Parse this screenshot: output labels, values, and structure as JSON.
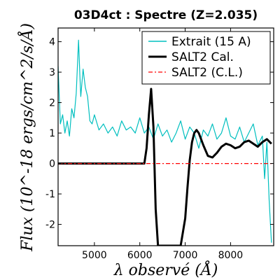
{
  "chart_data": {
    "type": "line",
    "title": "03D4ct : Spectre (Z=2.035)",
    "xlabel": "λ observé (Å)",
    "ylabel": "Flux (10^-18 ergs/cm^2/s/Å)",
    "xlim": [
      4200,
      8950
    ],
    "ylim": [
      -2.7,
      4.45
    ],
    "xticks": [
      5000,
      6000,
      7000,
      8000
    ],
    "xtick_labels": [
      "5000",
      "6000",
      "7000",
      "8000"
    ],
    "yticks": [
      4,
      3,
      2,
      1,
      0,
      -1,
      -2
    ],
    "ytick_labels": [
      "4",
      "3",
      "2",
      "1",
      "0",
      "-1",
      "-2"
    ],
    "grid": false,
    "legend_position": "top-right",
    "colors": {
      "extrait": "#00bfbf",
      "salt2_cal": "#000000",
      "salt2_cl": "#ff0000"
    },
    "series": [
      {
        "name": "Extrait (15 A)",
        "style": "solid",
        "x": [
          4200,
          4250,
          4300,
          4350,
          4400,
          4450,
          4500,
          4550,
          4600,
          4650,
          4680,
          4700,
          4750,
          4800,
          4850,
          4900,
          4950,
          5000,
          5100,
          5200,
          5300,
          5400,
          5500,
          5600,
          5700,
          5800,
          5900,
          6000,
          6100,
          6200,
          6300,
          6400,
          6500,
          6600,
          6700,
          6800,
          6900,
          7000,
          7100,
          7200,
          7300,
          7400,
          7500,
          7600,
          7700,
          7800,
          7900,
          8000,
          8100,
          8200,
          8300,
          8400,
          8500,
          8600,
          8700,
          8750,
          8800,
          8850,
          8900
        ],
        "y": [
          3.2,
          1.3,
          1.6,
          1.0,
          1.4,
          0.9,
          1.8,
          1.5,
          2.3,
          4.05,
          2.9,
          2.2,
          3.1,
          2.5,
          2.2,
          1.4,
          1.3,
          1.6,
          1.1,
          1.3,
          1.0,
          1.2,
          0.9,
          1.4,
          1.1,
          1.2,
          1.0,
          1.5,
          1.0,
          1.2,
          0.8,
          1.3,
          0.9,
          1.1,
          0.7,
          1.0,
          1.4,
          0.8,
          1.2,
          1.0,
          0.5,
          1.1,
          0.9,
          1.3,
          0.8,
          1.0,
          1.5,
          0.9,
          0.8,
          1.2,
          0.7,
          1.0,
          1.3,
          0.6,
          0.9,
          -0.5,
          0.7,
          -1.2,
          -2.6
        ]
      },
      {
        "name": "SALT2 Cal.",
        "style": "solid",
        "x": [
          4200,
          5000,
          6000,
          6100,
          6150,
          6200,
          6250,
          6300,
          6350,
          6400,
          6450,
          6500,
          6900,
          7000,
          7050,
          7100,
          7150,
          7200,
          7250,
          7300,
          7400,
          7500,
          7600,
          7700,
          7800,
          7900,
          8000,
          8100,
          8200,
          8300,
          8400,
          8500,
          8600,
          8700,
          8800,
          8900
        ],
        "y": [
          0,
          0,
          0,
          0,
          0.5,
          1.6,
          2.45,
          1.2,
          -1.5,
          -2.7,
          -2.7,
          -2.7,
          -2.7,
          -1.8,
          -0.8,
          0.1,
          0.7,
          1.0,
          1.1,
          1.0,
          0.6,
          0.25,
          0.2,
          0.35,
          0.55,
          0.65,
          0.6,
          0.5,
          0.55,
          0.7,
          0.75,
          0.65,
          0.55,
          0.7,
          0.8,
          0.65
        ]
      },
      {
        "name": "SALT2 (C.L.)",
        "style": "dash-dot",
        "x": [
          4200,
          8950
        ],
        "y": [
          0,
          0
        ]
      }
    ]
  }
}
